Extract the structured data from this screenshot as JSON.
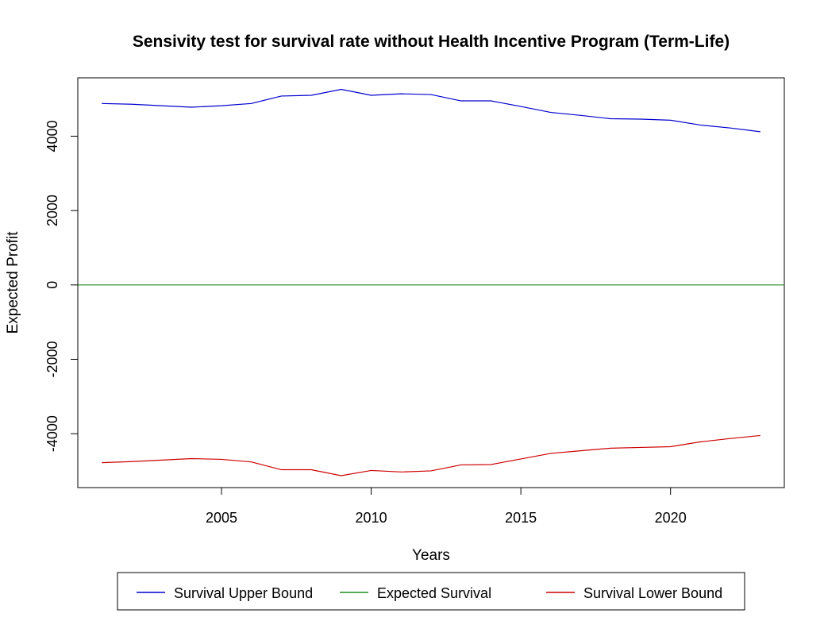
{
  "chart_data": {
    "type": "line",
    "title": "Sensivity test for survival rate without Health Incentive Program (Term-Life)",
    "xlabel": "Years",
    "ylabel": "Expected Profit",
    "xlim": [
      2000.2,
      2023.8
    ],
    "ylim": [
      -5450,
      5570
    ],
    "x_ticks": [
      2005,
      2010,
      2015,
      2020
    ],
    "y_ticks": [
      -4000,
      -2000,
      0,
      2000,
      4000
    ],
    "x": [
      2001,
      2002,
      2003,
      2004,
      2005,
      2006,
      2007,
      2008,
      2009,
      2010,
      2011,
      2012,
      2013,
      2014,
      2015,
      2016,
      2017,
      2018,
      2019,
      2020,
      2021,
      2022,
      2023
    ],
    "series": [
      {
        "name": "Survival Upper Bound",
        "color": "#0000cd",
        "values": [
          4880,
          4860,
          4820,
          4780,
          4820,
          4880,
          5080,
          5100,
          5260,
          5100,
          5140,
          5120,
          4950,
          4950,
          4800,
          4640,
          4560,
          4470,
          4460,
          4430,
          4300,
          4220,
          4120
        ]
      },
      {
        "name": "Expected Survival",
        "color": "#228b22",
        "values": [
          0,
          0,
          0,
          0,
          0,
          0,
          0,
          0,
          0,
          0,
          0,
          0,
          0,
          0,
          0,
          0,
          0,
          0,
          0,
          0,
          0,
          0,
          0
        ]
      },
      {
        "name": "Survival Lower Bound",
        "color": "#cd0000",
        "values": [
          -4780,
          -4750,
          -4710,
          -4670,
          -4690,
          -4760,
          -4970,
          -4970,
          -5130,
          -4990,
          -5030,
          -5000,
          -4840,
          -4830,
          -4680,
          -4530,
          -4460,
          -4390,
          -4370,
          -4350,
          -4220,
          -4130,
          -4050
        ]
      }
    ],
    "legend_position": "bottom",
    "grid": false
  }
}
